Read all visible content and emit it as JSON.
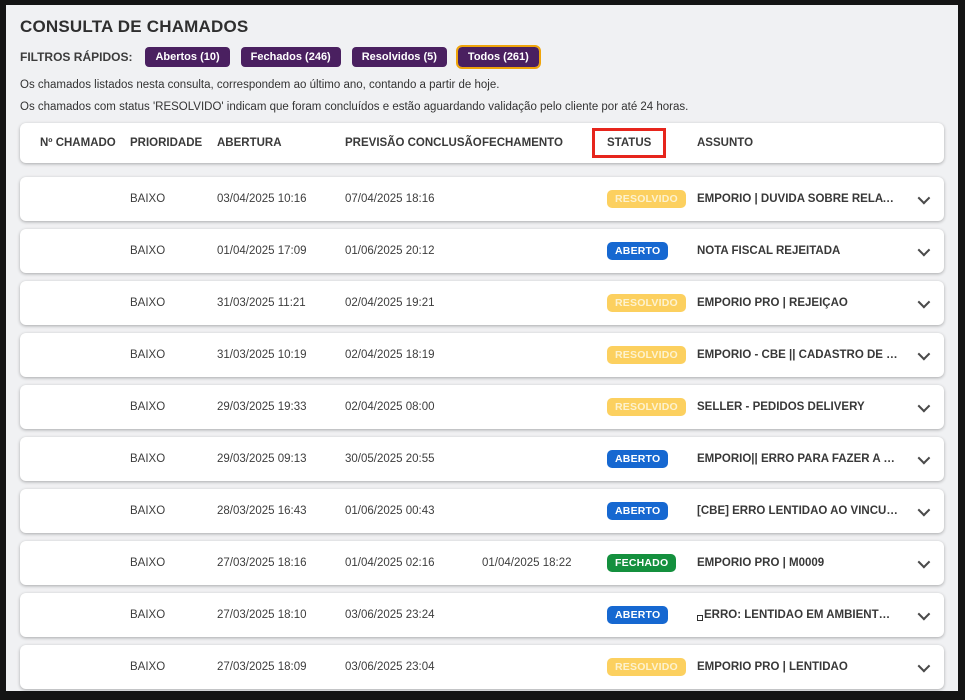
{
  "page": {
    "title": "CONSULTA DE CHAMADOS"
  },
  "filters": {
    "label": "FILTROS RÁPIDOS:",
    "chip_bg": "#4a2060",
    "chip_fg": "#ffffff",
    "selected_border": "#efa40a",
    "chips": [
      {
        "label": "Abertos (10)",
        "selected": false
      },
      {
        "label": "Fechados (246)",
        "selected": false
      },
      {
        "label": "Resolvidos (5)",
        "selected": false
      },
      {
        "label": "Todos (261)",
        "selected": true
      }
    ]
  },
  "notes": [
    "Os chamados listados nesta consulta, correspondem ao último ano, contando a partir de hoje.",
    "Os chamados com status 'RESOLVIDO' indicam que foram concluídos e estão aguardando validação pelo cliente por até 24 horas."
  ],
  "table": {
    "highlight_color": "#e6251c",
    "columns": [
      {
        "key": "chamado",
        "label": "Nº CHAMADO",
        "highlighted": false
      },
      {
        "key": "prioridade",
        "label": "PRIORIDADE",
        "highlighted": false
      },
      {
        "key": "abertura",
        "label": "ABERTURA",
        "highlighted": false
      },
      {
        "key": "previsao",
        "label": "PREVISÃO CONCLUSÃO",
        "highlighted": false
      },
      {
        "key": "fechamento",
        "label": "FECHAMENTO",
        "highlighted": false
      },
      {
        "key": "status",
        "label": "STATUS",
        "highlighted": true
      },
      {
        "key": "assunto",
        "label": "ASSUNTO",
        "highlighted": false
      }
    ]
  },
  "status_styles": {
    "RESOLVIDO": {
      "bg": "#fcd05f",
      "fg": "#fdf2cf"
    },
    "ABERTO": {
      "bg": "#1668d1",
      "fg": "#ffffff"
    },
    "FECHADO": {
      "bg": "#14903e",
      "fg": "#ffffff"
    }
  },
  "rows": [
    {
      "chamado": "",
      "prioridade": "BAIXO",
      "abertura": "03/04/2025 10:16",
      "previsao": "07/04/2025 18:16",
      "fechamento": "",
      "status": "RESOLVIDO",
      "assunto": "EMPORIO | DÚVIDA SOBRE RELATÓ...",
      "square_marker": false
    },
    {
      "chamado": "",
      "prioridade": "BAIXO",
      "abertura": "01/04/2025 17:09",
      "previsao": "01/06/2025 20:12",
      "fechamento": "",
      "status": "ABERTO",
      "assunto": "NOTA FISCAL REJEITADA",
      "square_marker": false
    },
    {
      "chamado": "",
      "prioridade": "BAIXO",
      "abertura": "31/03/2025 11:21",
      "previsao": "02/04/2025 19:21",
      "fechamento": "",
      "status": "RESOLVIDO",
      "assunto": "EMPORIO PRO | REJEIÇÃO",
      "square_marker": false
    },
    {
      "chamado": "",
      "prioridade": "BAIXO",
      "abertura": "31/03/2025 10:19",
      "previsao": "02/04/2025 18:19",
      "fechamento": "",
      "status": "RESOLVIDO",
      "assunto": "EMPORIO - CBE || CADASTRO DE F...",
      "square_marker": false
    },
    {
      "chamado": "",
      "prioridade": "BAIXO",
      "abertura": "29/03/2025 19:33",
      "previsao": "02/04/2025 08:00",
      "fechamento": "",
      "status": "RESOLVIDO",
      "assunto": "SELLER - PEDIDOS DELIVERY",
      "square_marker": false
    },
    {
      "chamado": "",
      "prioridade": "BAIXO",
      "abertura": "29/03/2025 09:13",
      "previsao": "30/05/2025 20:55",
      "fechamento": "",
      "status": "ABERTO",
      "assunto": "EMPÓRIO|| ERRO PARA FAZER A C...",
      "square_marker": false
    },
    {
      "chamado": "",
      "prioridade": "BAIXO",
      "abertura": "28/03/2025 16:43",
      "previsao": "01/06/2025 00:43",
      "fechamento": "",
      "status": "ABERTO",
      "assunto": "[CBE] ERRO LENTIDÃO AO VINCUL...",
      "square_marker": false
    },
    {
      "chamado": "",
      "prioridade": "BAIXO",
      "abertura": "27/03/2025 18:16",
      "previsao": "01/04/2025 02:16",
      "fechamento": "01/04/2025 18:22",
      "status": "FECHADO",
      "assunto": "EMPORIO PRO | M0009",
      "square_marker": false
    },
    {
      "chamado": "",
      "prioridade": "BAIXO",
      "abertura": "27/03/2025 18:10",
      "previsao": "03/06/2025 23:24",
      "fechamento": "",
      "status": "ABERTO",
      "assunto": "ERRO: LENTIDÃO EM AMBIENTRE ...",
      "square_marker": true
    },
    {
      "chamado": "",
      "prioridade": "BAIXO",
      "abertura": "27/03/2025 18:09",
      "previsao": "03/06/2025 23:04",
      "fechamento": "",
      "status": "RESOLVIDO",
      "assunto": "EMPORIO PRO | LENTIDÃO",
      "square_marker": false
    }
  ]
}
